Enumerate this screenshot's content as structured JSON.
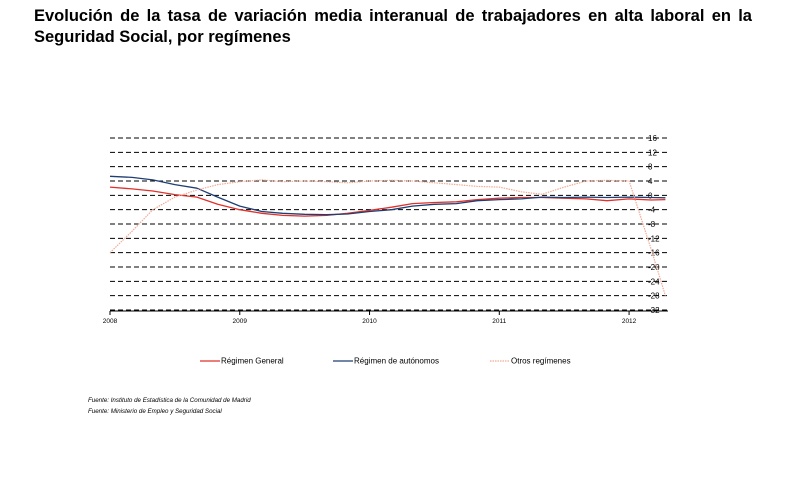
{
  "title": "Evolución de la tasa de variación media interanual de trabajadores en alta laboral en la Seguridad Social, por  regímenes",
  "sources": [
    "Fuente: Instituto de Estadística de la Comunidad de Madrid",
    "Fuente: Ministerio de Empleo y Seguridad Social"
  ],
  "chart_data": {
    "type": "line",
    "title": "Evolución de la tasa de variación media interanual de trabajadores en alta laboral en la Seguridad Social, por  regímenes",
    "xlabel": "",
    "ylabel": "",
    "x_ticks": [
      2008,
      2009,
      2010,
      2011,
      2012
    ],
    "xlim": [
      2008,
      2012.3
    ],
    "y_ticks": [
      16,
      12,
      8,
      4,
      0,
      -4,
      -8,
      -12,
      -16,
      -20,
      -24,
      -28,
      -32
    ],
    "ylim": [
      -32,
      16
    ],
    "y_axis_side": "right",
    "grid": "horizontal dashed",
    "legend_position": "bottom",
    "series": [
      {
        "name": "Régimen General",
        "color": "#e0312b",
        "style": "solid",
        "x": [
          2008.0,
          2008.17,
          2008.33,
          2008.5,
          2008.67,
          2008.83,
          2009.0,
          2009.17,
          2009.33,
          2009.5,
          2009.67,
          2009.83,
          2010.0,
          2010.17,
          2010.33,
          2010.5,
          2010.67,
          2010.83,
          2011.0,
          2011.17,
          2011.33,
          2011.5,
          2011.67,
          2011.83,
          2012.0,
          2012.17,
          2012.28
        ],
        "values": [
          2.3,
          1.8,
          1.2,
          0.2,
          -0.5,
          -2.5,
          -4.0,
          -5.0,
          -5.6,
          -5.8,
          -5.6,
          -5.0,
          -4.2,
          -3.3,
          -2.3,
          -2.0,
          -1.8,
          -1.2,
          -0.8,
          -0.6,
          -0.6,
          -0.8,
          -1.0,
          -1.5,
          -1.0,
          -1.3,
          -1.2
        ]
      },
      {
        "name": "Régimen de autónomos",
        "color": "#1f3e73",
        "style": "solid",
        "x": [
          2008.0,
          2008.17,
          2008.33,
          2008.5,
          2008.67,
          2008.83,
          2009.0,
          2009.17,
          2009.33,
          2009.5,
          2009.67,
          2009.83,
          2010.0,
          2010.17,
          2010.33,
          2010.5,
          2010.67,
          2010.83,
          2011.0,
          2011.17,
          2011.33,
          2011.5,
          2011.67,
          2011.83,
          2012.0,
          2012.17,
          2012.28
        ],
        "values": [
          5.3,
          5.0,
          4.3,
          3.0,
          2.0,
          -0.5,
          -3.0,
          -4.5,
          -5.0,
          -5.3,
          -5.4,
          -5.2,
          -4.5,
          -4.0,
          -3.0,
          -2.5,
          -2.3,
          -1.5,
          -1.2,
          -1.0,
          -0.5,
          -0.6,
          -0.5,
          -0.6,
          -0.5,
          -0.6,
          -0.7
        ]
      },
      {
        "name": "Otros regímenes",
        "color": "#f2aa95",
        "style": "dotted",
        "x": [
          2008.0,
          2008.17,
          2008.33,
          2008.5,
          2008.67,
          2008.83,
          2009.0,
          2009.17,
          2009.33,
          2009.5,
          2009.67,
          2009.83,
          2010.0,
          2010.17,
          2010.33,
          2010.5,
          2010.67,
          2010.83,
          2011.0,
          2011.17,
          2011.33,
          2011.5,
          2011.67,
          2011.83,
          2012.0,
          2012.17,
          2012.28
        ],
        "values": [
          -16.0,
          -10.0,
          -4.0,
          -0.5,
          1.5,
          3.0,
          3.8,
          4.3,
          3.8,
          4.0,
          3.8,
          3.5,
          4.0,
          4.2,
          4.0,
          3.5,
          3.0,
          2.5,
          2.3,
          1.0,
          0.3,
          2.3,
          4.0,
          4.2,
          4.0,
          -15.0,
          -28.0
        ]
      }
    ]
  }
}
